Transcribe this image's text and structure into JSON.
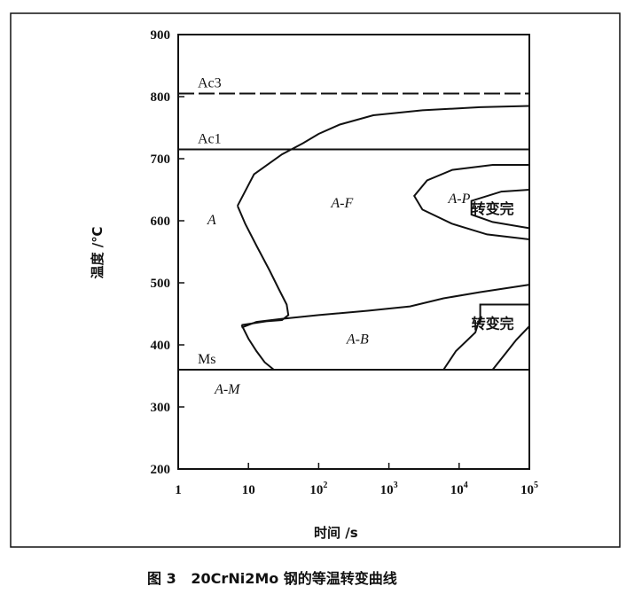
{
  "chart_data": {
    "type": "line",
    "xlabel": "时间 /s",
    "ylabel": "温度 /℃",
    "xscale": "log",
    "xlim": [
      1,
      100000
    ],
    "ylim": [
      200,
      900
    ],
    "x_ticks": [
      {
        "base": "1",
        "exp": ""
      },
      {
        "base": "10",
        "exp": ""
      },
      {
        "base": "10",
        "exp": "2"
      },
      {
        "base": "10",
        "exp": "3"
      },
      {
        "base": "10",
        "exp": "4"
      },
      {
        "base": "10",
        "exp": "5"
      }
    ],
    "y_ticks": [
      "200",
      "300",
      "400",
      "500",
      "600",
      "700",
      "800",
      "900"
    ],
    "reference_lines": [
      {
        "label": "Ac3",
        "y": 805,
        "style": "dashed"
      },
      {
        "label": "Ac1",
        "y": 715,
        "style": "solid"
      },
      {
        "label": "Ms",
        "y": 360,
        "style": "solid"
      }
    ],
    "regions": [
      {
        "label": "A",
        "x": 2.6,
        "y": 603
      },
      {
        "label": "A-F",
        "x": 150,
        "y": 630
      },
      {
        "label": "A-P",
        "x": 7000,
        "y": 637
      },
      {
        "label": "A-B",
        "x": 250,
        "y": 411
      },
      {
        "label": "A-M",
        "x": 3.3,
        "y": 330
      }
    ],
    "annotations": [
      {
        "text": "转变完",
        "x": 30000,
        "y": 620
      },
      {
        "text": "转变完",
        "x": 30000,
        "y": 435
      }
    ],
    "series": [
      {
        "points": [
          [
            7,
            624
          ],
          [
            12,
            675
          ],
          [
            30,
            707
          ],
          [
            60,
            725
          ],
          [
            100,
            740
          ],
          [
            200,
            755
          ],
          [
            600,
            770
          ],
          [
            3000,
            778
          ],
          [
            20000,
            783
          ],
          [
            100000,
            785
          ]
        ]
      },
      {
        "points": [
          [
            7,
            624
          ],
          [
            9,
            595
          ],
          [
            13,
            560
          ],
          [
            20,
            520
          ],
          [
            27,
            490
          ],
          [
            35,
            465
          ],
          [
            37,
            448
          ],
          [
            30,
            440
          ],
          [
            18,
            438
          ],
          [
            8,
            432
          ]
        ]
      },
      {
        "points": [
          [
            8,
            432
          ],
          [
            10,
            410
          ],
          [
            13,
            390
          ],
          [
            17,
            372
          ],
          [
            23,
            360
          ]
        ]
      },
      {
        "points": [
          [
            8,
            428
          ],
          [
            13,
            437
          ],
          [
            30,
            442
          ],
          [
            100,
            448
          ],
          [
            500,
            455
          ],
          [
            2000,
            462
          ],
          [
            6000,
            475
          ],
          [
            20000,
            485
          ],
          [
            100000,
            497
          ]
        ]
      },
      {
        "points": [
          [
            100000,
            690
          ],
          [
            30000,
            690
          ],
          [
            8000,
            682
          ],
          [
            3500,
            665
          ],
          [
            2300,
            640
          ],
          [
            3000,
            618
          ],
          [
            8000,
            595
          ],
          [
            25000,
            578
          ],
          [
            100000,
            570
          ]
        ]
      },
      {
        "points": [
          [
            100000,
            650
          ],
          [
            40000,
            647
          ],
          [
            15000,
            632
          ],
          [
            15000,
            610
          ],
          [
            30000,
            598
          ],
          [
            100000,
            588
          ]
        ]
      },
      {
        "points": [
          [
            6000,
            360
          ],
          [
            9000,
            390
          ],
          [
            17000,
            420
          ],
          [
            20000,
            445
          ],
          [
            20000,
            465
          ],
          [
            100000,
            465
          ]
        ]
      },
      {
        "points": [
          [
            30000,
            360
          ],
          [
            45000,
            385
          ],
          [
            65000,
            408
          ],
          [
            100000,
            430
          ]
        ]
      }
    ]
  },
  "caption": "图 3   20CrNi2Mo 钢的等温转变曲线"
}
